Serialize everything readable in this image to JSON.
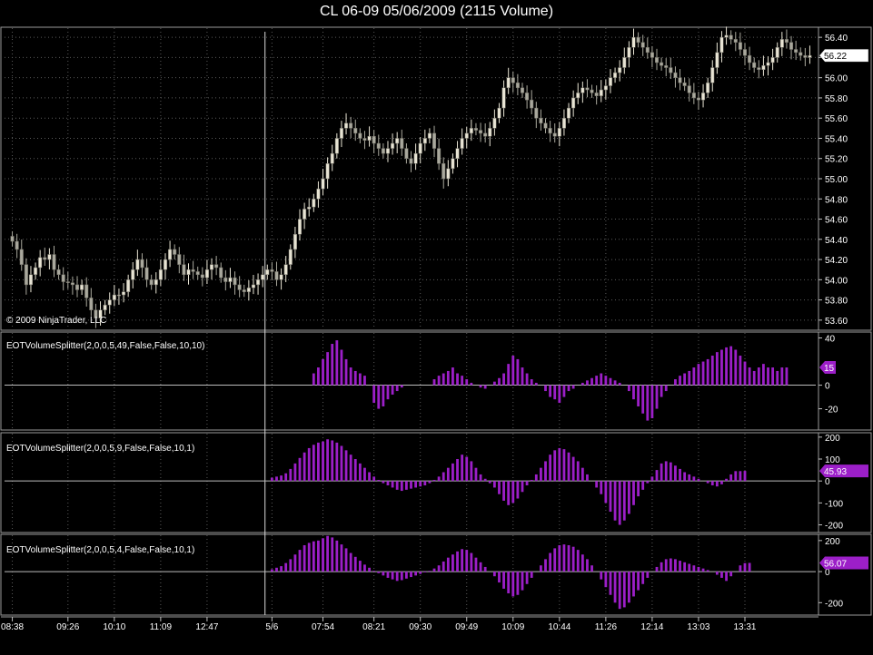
{
  "title": "CL 06-09  05/06/2009 (2115 Volume)",
  "copyright": "© 2009 NinjaTrader, LLC",
  "colors": {
    "background": "#000000",
    "grid": "#5a5a5a",
    "axis": "#bfbfbf",
    "candle_up": "#e8e4d4",
    "candle_down": "#a9a89d",
    "histogram": "#9c1fc8",
    "price_marker_bg": "#ffffff",
    "indicator_marker_bg": "#9c1fc8"
  },
  "time_axis": {
    "labels": [
      "08:38",
      "09:26",
      "10:10",
      "11:09",
      "12:47",
      "5/6",
      "07:54",
      "08:21",
      "09:30",
      "09:49",
      "10:09",
      "10:44",
      "11:26",
      "12:14",
      "13:03",
      "13:31"
    ],
    "label_bar_index": [
      0,
      12,
      22,
      32,
      42,
      56,
      67,
      78,
      88,
      98,
      108,
      118,
      128,
      138,
      148,
      158
    ],
    "session_break_bar": 56
  },
  "price_axis": {
    "ticks": [
      "56.40",
      "56.20",
      "56.00",
      "55.80",
      "55.60",
      "55.40",
      "55.20",
      "55.00",
      "54.80",
      "54.60",
      "54.40",
      "54.20",
      "54.00",
      "53.80",
      "53.60"
    ],
    "last_price": "56.22",
    "ylim": [
      53.5,
      56.5
    ]
  },
  "indicators": [
    {
      "label": "EOTVolumeSplitter(2,0,0,5,49,False,False,10,10)",
      "ticks": [
        "40",
        "0",
        "-20"
      ],
      "tick_values": [
        40,
        0,
        -20
      ],
      "ylim": [
        -38,
        45
      ],
      "last_value": "15"
    },
    {
      "label": "EOTVolumeSplitter(2,0,0,5,9,False,False,10,1)",
      "ticks": [
        "200",
        "100",
        "0",
        "-100",
        "-200"
      ],
      "tick_values": [
        200,
        100,
        0,
        -100,
        -200
      ],
      "ylim": [
        -235,
        220
      ],
      "last_value": "45.93"
    },
    {
      "label": "EOTVolumeSplitter(2,0,0,5,4,False,False,10,1)",
      "ticks": [
        "200",
        "0",
        "-200"
      ],
      "tick_values": [
        200,
        0,
        -200
      ],
      "ylim": [
        -280,
        240
      ],
      "last_value": "56.07"
    }
  ],
  "chart_data": {
    "type": "candlestick",
    "price_close": [
      54.38,
      54.3,
      54.15,
      53.95,
      54.05,
      54.12,
      54.22,
      54.2,
      54.25,
      54.1,
      54.05,
      53.98,
      53.97,
      53.95,
      53.9,
      53.95,
      53.82,
      53.7,
      53.62,
      53.7,
      53.75,
      53.8,
      53.85,
      53.85,
      53.88,
      54.0,
      54.1,
      54.2,
      54.12,
      54.0,
      53.95,
      54.0,
      54.1,
      54.2,
      54.3,
      54.25,
      54.15,
      54.05,
      54.1,
      54.08,
      54.05,
      54.02,
      54.1,
      54.15,
      54.12,
      54.02,
      53.98,
      54.02,
      53.95,
      53.9,
      53.88,
      53.92,
      53.95,
      54.0,
      54.05,
      54.1,
      54.08,
      54.0,
      54.05,
      54.15,
      54.3,
      54.45,
      54.6,
      54.7,
      54.72,
      54.8,
      54.9,
      55.0,
      55.15,
      55.25,
      55.4,
      55.5,
      55.55,
      55.5,
      55.45,
      55.4,
      55.38,
      55.42,
      55.35,
      55.3,
      55.25,
      55.3,
      55.35,
      55.4,
      55.3,
      55.2,
      55.15,
      55.25,
      55.35,
      55.4,
      55.45,
      55.3,
      55.15,
      55.0,
      55.1,
      55.2,
      55.3,
      55.4,
      55.45,
      55.5,
      55.48,
      55.45,
      55.42,
      55.5,
      55.6,
      55.7,
      55.9,
      56.0,
      55.95,
      55.9,
      55.85,
      55.78,
      55.7,
      55.6,
      55.55,
      55.5,
      55.45,
      55.42,
      55.5,
      55.6,
      55.7,
      55.8,
      55.85,
      55.9,
      55.88,
      55.85,
      55.82,
      55.88,
      55.92,
      56.0,
      56.05,
      56.1,
      56.2,
      56.3,
      56.4,
      56.35,
      56.3,
      56.25,
      56.2,
      56.15,
      56.12,
      56.1,
      56.05,
      56.0,
      55.95,
      55.92,
      55.85,
      55.8,
      55.78,
      55.85,
      55.95,
      56.1,
      56.25,
      56.4,
      56.42,
      56.38,
      56.35,
      56.28,
      56.22,
      56.15,
      56.1,
      56.08,
      56.12,
      56.15,
      56.2,
      56.3,
      56.38,
      56.35,
      56.28,
      56.25,
      56.22,
      56.2,
      56.22
    ],
    "indicator_values": [
      [
        0,
        0,
        0,
        0,
        0,
        0,
        0,
        0,
        0,
        0,
        0,
        0,
        0,
        0,
        0,
        0,
        0,
        0,
        0,
        0,
        0,
        0,
        0,
        0,
        0,
        0,
        0,
        0,
        0,
        0,
        0,
        0,
        0,
        0,
        0,
        0,
        0,
        0,
        0,
        0,
        0,
        0,
        0,
        0,
        0,
        0,
        0,
        0,
        0,
        0,
        0,
        0,
        0,
        0,
        0,
        0,
        0,
        0,
        0,
        0,
        0,
        0,
        0,
        0,
        0,
        10,
        15,
        22,
        28,
        35,
        38,
        30,
        22,
        15,
        12,
        10,
        8,
        0,
        -15,
        -20,
        -18,
        -12,
        -8,
        -5,
        -2,
        0,
        0,
        0,
        0,
        0,
        0,
        5,
        8,
        10,
        12,
        15,
        10,
        8,
        5,
        2,
        0,
        -2,
        -3,
        0,
        3,
        6,
        10,
        18,
        25,
        22,
        15,
        10,
        5,
        2,
        0,
        -5,
        -10,
        -12,
        -15,
        -10,
        -5,
        -3,
        0,
        2,
        4,
        6,
        8,
        10,
        8,
        6,
        4,
        2,
        0,
        -5,
        -12,
        -18,
        -24,
        -30,
        -28,
        -20,
        -10,
        -5,
        0,
        5,
        8,
        10,
        12,
        15,
        18,
        20,
        22,
        25,
        28,
        30,
        32,
        33,
        30,
        25,
        20,
        15,
        12,
        15,
        18,
        15,
        15,
        12,
        15,
        15
      ],
      [
        0,
        0,
        0,
        0,
        0,
        0,
        0,
        0,
        0,
        0,
        0,
        0,
        0,
        0,
        0,
        0,
        0,
        0,
        0,
        0,
        0,
        0,
        0,
        0,
        0,
        0,
        0,
        0,
        0,
        0,
        0,
        0,
        0,
        0,
        0,
        0,
        0,
        0,
        0,
        0,
        0,
        0,
        0,
        0,
        0,
        0,
        0,
        0,
        0,
        0,
        0,
        0,
        0,
        0,
        0,
        0,
        15,
        20,
        25,
        35,
        55,
        80,
        105,
        130,
        150,
        165,
        175,
        180,
        190,
        185,
        175,
        160,
        140,
        120,
        100,
        80,
        60,
        40,
        20,
        5,
        -10,
        -20,
        -30,
        -40,
        -45,
        -40,
        -35,
        -30,
        -25,
        -20,
        -10,
        5,
        20,
        40,
        60,
        80,
        100,
        120,
        110,
        90,
        60,
        30,
        10,
        -10,
        -30,
        -60,
        -90,
        -110,
        -100,
        -80,
        -50,
        -20,
        5,
        30,
        60,
        90,
        120,
        140,
        150,
        145,
        130,
        110,
        90,
        60,
        30,
        0,
        -30,
        -60,
        -100,
        -140,
        -180,
        -200,
        -180,
        -150,
        -110,
        -70,
        -40,
        -10,
        20,
        50,
        80,
        90,
        85,
        70,
        55,
        40,
        30,
        20,
        10,
        0,
        -10,
        -20,
        -25,
        -15,
        10,
        30,
        45,
        45,
        46
      ],
      [
        0,
        0,
        0,
        0,
        0,
        0,
        0,
        0,
        0,
        0,
        0,
        0,
        0,
        0,
        0,
        0,
        0,
        0,
        0,
        0,
        0,
        0,
        0,
        0,
        0,
        0,
        0,
        0,
        0,
        0,
        0,
        0,
        0,
        0,
        0,
        0,
        0,
        0,
        0,
        0,
        0,
        0,
        0,
        0,
        0,
        0,
        0,
        0,
        0,
        0,
        0,
        0,
        0,
        0,
        0,
        0,
        15,
        25,
        35,
        55,
        80,
        110,
        140,
        170,
        185,
        195,
        200,
        215,
        230,
        220,
        200,
        175,
        150,
        120,
        95,
        70,
        45,
        25,
        5,
        -10,
        -25,
        -40,
        -50,
        -60,
        -55,
        -45,
        -35,
        -25,
        -15,
        -5,
        5,
        20,
        40,
        65,
        90,
        110,
        130,
        145,
        140,
        120,
        90,
        60,
        30,
        0,
        -30,
        -70,
        -110,
        -140,
        -160,
        -150,
        -120,
        -80,
        -40,
        0,
        40,
        80,
        120,
        150,
        170,
        175,
        170,
        160,
        140,
        110,
        80,
        40,
        0,
        -50,
        -100,
        -150,
        -200,
        -240,
        -230,
        -200,
        -160,
        -120,
        -80,
        -40,
        0,
        30,
        60,
        80,
        85,
        80,
        70,
        60,
        50,
        40,
        30,
        20,
        10,
        0,
        -20,
        -40,
        -60,
        -30,
        0,
        40,
        55,
        56
      ]
    ]
  }
}
